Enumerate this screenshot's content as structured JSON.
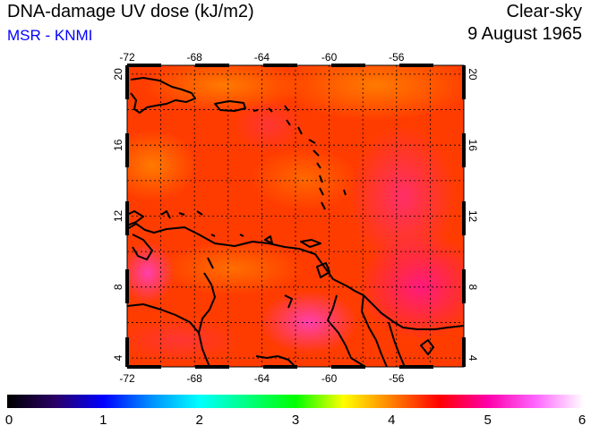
{
  "header": {
    "title": "DNA-damage UV dose (kJ/m2)",
    "source": "MSR - KNMI",
    "condition": "Clear-sky",
    "date": "9 August 1965"
  },
  "map": {
    "lon_range": [
      -72,
      -52
    ],
    "lat_range": [
      3.5,
      20.5
    ],
    "lon_ticks": [
      "-72",
      "-68",
      "-64",
      "-60",
      "-56"
    ],
    "lon_tick_values": [
      -72,
      -68,
      -64,
      -60,
      -56
    ],
    "lat_ticks": [
      "4",
      "8",
      "12",
      "16",
      "20"
    ],
    "lat_tick_values": [
      4,
      8,
      12,
      16,
      20
    ],
    "grid": true,
    "grid_step_deg": 2,
    "colors": {
      "land_outline": "#000000",
      "field_base": "#ff3c00",
      "grid": "#000000"
    }
  },
  "colorbar": {
    "min": 0,
    "max": 6,
    "ticks": [
      "0",
      "1",
      "2",
      "3",
      "4",
      "5",
      "6"
    ],
    "tick_values": [
      0,
      1,
      2,
      3,
      4,
      5,
      6
    ],
    "stops": [
      {
        "value": 0,
        "color": "#000000"
      },
      {
        "value": 0.5,
        "color": "#2a0066"
      },
      {
        "value": 1,
        "color": "#0000ff"
      },
      {
        "value": 1.5,
        "color": "#0090ff"
      },
      {
        "value": 2,
        "color": "#00ffff"
      },
      {
        "value": 2.5,
        "color": "#00ff80"
      },
      {
        "value": 3,
        "color": "#00ff00"
      },
      {
        "value": 3.5,
        "color": "#ffff00"
      },
      {
        "value": 4,
        "color": "#ff8000"
      },
      {
        "value": 4.5,
        "color": "#ff0000"
      },
      {
        "value": 5,
        "color": "#ff00aa"
      },
      {
        "value": 5.5,
        "color": "#ff66ff"
      },
      {
        "value": 6,
        "color": "#ffffff"
      }
    ]
  }
}
